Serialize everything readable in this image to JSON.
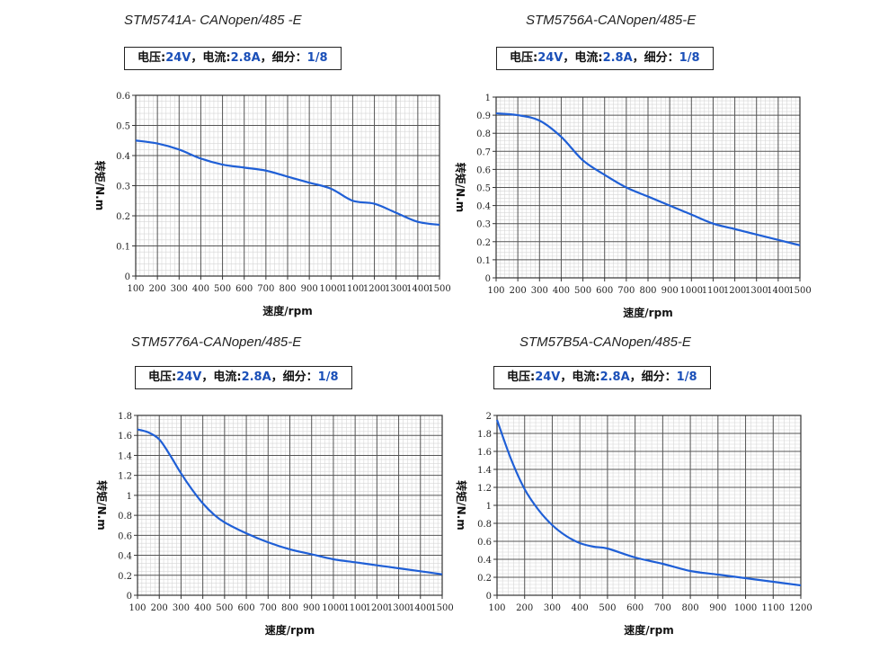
{
  "chart_data": [
    {
      "type": "line",
      "title": "STM5741A- CANopen/485 -E",
      "spec": {
        "voltage_label": "电压:",
        "voltage": "24V",
        "current_label": "，电流:",
        "current": "2.8A",
        "micro_label": "，细分：",
        "micro": "1/8"
      },
      "xlabel": "速度/rpm",
      "ylabel": "转矩/N.m",
      "xlim": [
        100,
        1500
      ],
      "ylim": [
        0,
        0.6
      ],
      "xticks": [
        100,
        200,
        300,
        400,
        500,
        600,
        700,
        800,
        900,
        1000,
        1100,
        1200,
        1300,
        1400,
        1500
      ],
      "xtick_labels": [
        "100",
        "200",
        "300",
        "400",
        "500",
        "600",
        "700",
        "800",
        "900",
        "1000",
        "1100",
        "1200",
        "1300",
        "1400",
        "1500"
      ],
      "yticks": [
        0,
        0.1,
        0.2,
        0.3,
        0.4,
        0.5,
        0.6
      ],
      "ytick_labels": [
        "0",
        "0.1",
        "0.2",
        "0.3",
        "0.4",
        "0.5",
        "0.6"
      ],
      "grid": true,
      "x": [
        100,
        200,
        300,
        400,
        500,
        600,
        700,
        800,
        900,
        1000,
        1100,
        1200,
        1300,
        1400,
        1500
      ],
      "series": [
        {
          "name": "torque",
          "values": [
            0.45,
            0.44,
            0.42,
            0.39,
            0.37,
            0.36,
            0.35,
            0.33,
            0.31,
            0.29,
            0.25,
            0.24,
            0.21,
            0.18,
            0.17
          ]
        }
      ],
      "color": "#1f5fd6"
    },
    {
      "type": "line",
      "title": "STM5756A-CANopen/485-E",
      "spec": {
        "voltage_label": "电压:",
        "voltage": "24V",
        "current_label": "，电流:",
        "current": "2.8A",
        "micro_label": "，细分：",
        "micro": "1/8"
      },
      "xlabel": "速度/rpm",
      "ylabel": "转矩/N.m",
      "xlim": [
        100,
        1500
      ],
      "ylim": [
        0,
        1
      ],
      "xticks": [
        100,
        200,
        300,
        400,
        500,
        600,
        700,
        800,
        900,
        1000,
        1100,
        1200,
        1300,
        1400,
        1500
      ],
      "xtick_labels": [
        "100",
        "200",
        "300",
        "400",
        "500",
        "600",
        "700",
        "800",
        "900",
        "1000",
        "1100",
        "1200",
        "1300",
        "1400",
        "1500"
      ],
      "yticks": [
        0,
        0.1,
        0.2,
        0.3,
        0.4,
        0.5,
        0.6,
        0.7,
        0.8,
        0.9,
        1
      ],
      "ytick_labels": [
        "0",
        "0.1",
        "0.2",
        "0.3",
        "0.4",
        "0.5",
        "0.6",
        "0.7",
        "0.8",
        "0.9",
        "1"
      ],
      "grid": true,
      "x": [
        100,
        200,
        300,
        400,
        500,
        600,
        700,
        800,
        900,
        1000,
        1100,
        1200,
        1300,
        1400,
        1500
      ],
      "series": [
        {
          "name": "torque",
          "values": [
            0.91,
            0.9,
            0.87,
            0.78,
            0.65,
            0.57,
            0.5,
            0.45,
            0.4,
            0.35,
            0.3,
            0.27,
            0.24,
            0.21,
            0.18
          ]
        }
      ],
      "color": "#1f5fd6"
    },
    {
      "type": "line",
      "title": "STM5776A-CANopen/485-E",
      "spec": {
        "voltage_label": "电压:",
        "voltage": "24V",
        "current_label": "，电流:",
        "current": "2.8A",
        "micro_label": "，细分：",
        "micro": "1/8"
      },
      "xlabel": "速度/rpm",
      "ylabel": "转矩/N.m",
      "xlim": [
        100,
        1500
      ],
      "ylim": [
        0,
        1.8
      ],
      "xticks": [
        100,
        200,
        300,
        400,
        500,
        600,
        700,
        800,
        900,
        1000,
        1100,
        1200,
        1300,
        1400,
        1500
      ],
      "xtick_labels": [
        "100",
        "200",
        "300",
        "400",
        "500",
        "600",
        "700",
        "800",
        "900",
        "1000",
        "1100",
        "1200",
        "1300",
        "1400",
        "1500"
      ],
      "yticks": [
        0,
        0.2,
        0.4,
        0.6,
        0.8,
        1,
        1.2,
        1.4,
        1.6,
        1.8
      ],
      "ytick_labels": [
        "0",
        "0.2",
        "0.4",
        "0.6",
        "0.8",
        "1",
        "1.2",
        "1.4",
        "1.6",
        "1.8"
      ],
      "grid": true,
      "x": [
        100,
        150,
        200,
        250,
        300,
        350,
        400,
        450,
        500,
        600,
        700,
        800,
        900,
        1000,
        1100,
        1200,
        1300,
        1400,
        1500
      ],
      "series": [
        {
          "name": "torque",
          "values": [
            1.66,
            1.63,
            1.56,
            1.4,
            1.22,
            1.06,
            0.92,
            0.81,
            0.73,
            0.62,
            0.53,
            0.46,
            0.41,
            0.36,
            0.33,
            0.3,
            0.27,
            0.24,
            0.21
          ]
        }
      ],
      "color": "#1f5fd6"
    },
    {
      "type": "line",
      "title": "STM57B5A-CANopen/485-E",
      "spec": {
        "voltage_label": "电压:",
        "voltage": "24V",
        "current_label": "，电流:",
        "current": "2.8A",
        "micro_label": "，细分：",
        "micro": "1/8"
      },
      "xlabel": "速度/rpm",
      "ylabel": "转矩/N.m",
      "xlim": [
        100,
        1200
      ],
      "ylim": [
        0,
        2
      ],
      "xticks": [
        100,
        200,
        300,
        400,
        500,
        600,
        700,
        800,
        900,
        1000,
        1100,
        1200
      ],
      "xtick_labels": [
        "100",
        "200",
        "300",
        "400",
        "500",
        "600",
        "700",
        "800",
        "900",
        "1000",
        "1100",
        "1200"
      ],
      "yticks": [
        0,
        0.2,
        0.4,
        0.6,
        0.8,
        1,
        1.2,
        1.4,
        1.6,
        1.8,
        2
      ],
      "ytick_labels": [
        "0",
        "0.2",
        "0.4",
        "0.6",
        "0.8",
        "1",
        "1.2",
        "1.4",
        "1.6",
        "1.8",
        "2"
      ],
      "grid": true,
      "x": [
        100,
        150,
        200,
        250,
        300,
        350,
        400,
        450,
        500,
        600,
        700,
        800,
        900,
        1000,
        1100,
        1200
      ],
      "series": [
        {
          "name": "torque",
          "values": [
            1.95,
            1.52,
            1.18,
            0.95,
            0.78,
            0.66,
            0.58,
            0.54,
            0.52,
            0.42,
            0.35,
            0.27,
            0.23,
            0.19,
            0.15,
            0.11
          ]
        }
      ],
      "color": "#1f5fd6"
    }
  ]
}
